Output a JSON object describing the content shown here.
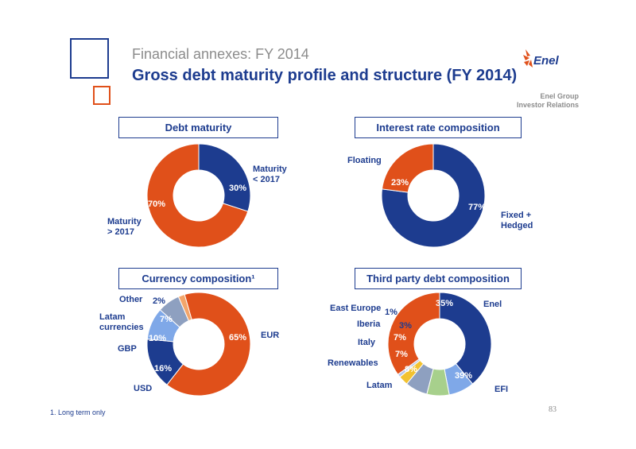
{
  "header": {
    "supertitle": "Financial annexes: FY 2014",
    "title": "Gross debt maturity profile and structure (FY 2014)",
    "logo_text": "Enel",
    "group_line1": "Enel Group",
    "group_line2": "Investor Relations"
  },
  "colors": {
    "blue": "#1d3c8f",
    "orange": "#e0501a",
    "text_orange": "#e0501a",
    "grey": "#8c8c8c",
    "mid_blue": "#5b8de0",
    "light_blue": "#7fa8e8",
    "slate": "#8ea0c0",
    "yellow": "#f2c230",
    "light_green": "#a7d08c",
    "lavender": "#b7c7ea",
    "peach": "#f3a56a"
  },
  "chart_data": [
    {
      "type": "pie",
      "title": "Debt maturity",
      "slices": [
        {
          "label": "Maturity\n< 2017",
          "value": 30,
          "value_label": "30%",
          "color": "#1d3c8f"
        },
        {
          "label": "Maturity\n> 2017",
          "value": 70,
          "value_label": "70%",
          "color": "#e0501a"
        }
      ]
    },
    {
      "type": "pie",
      "title": "Interest rate composition",
      "slices": [
        {
          "label": "Fixed  +\nHedged",
          "value": 77,
          "value_label": "77%",
          "color": "#1d3c8f"
        },
        {
          "label": "Floating",
          "value": 23,
          "value_label": "23%",
          "color": "#e0501a"
        }
      ]
    },
    {
      "type": "pie",
      "title": "Currency composition¹",
      "slices": [
        {
          "label": "EUR",
          "value": 65,
          "value_label": "65%",
          "color": "#e0501a"
        },
        {
          "label": "USD",
          "value": 16,
          "value_label": "16%",
          "color": "#1d3c8f"
        },
        {
          "label": "GBP",
          "value": 10,
          "value_label": "10%",
          "color": "#7fa8e8"
        },
        {
          "label": "Latam\ncurrencies",
          "value": 7,
          "value_label": "7%",
          "color": "#8ea0c0"
        },
        {
          "label": "Other",
          "value": 2,
          "value_label": "2%",
          "color": "#f3a56a"
        }
      ]
    },
    {
      "type": "pie",
      "title": "Third party debt composition",
      "slices": [
        {
          "label": "EFI",
          "value": 39,
          "value_label": "39%",
          "color": "#1d3c8f"
        },
        {
          "label": "Latam",
          "value": 8,
          "value_label": "8%",
          "color": "#7fa8e8"
        },
        {
          "label": "Renewables",
          "value": 7,
          "value_label": "7%",
          "color": "#a7d08c"
        },
        {
          "label": "Italy",
          "value": 7,
          "value_label": "7%",
          "color": "#8ea0c0"
        },
        {
          "label": "Iberia",
          "value": 3,
          "value_label": "3%",
          "color": "#f2c230"
        },
        {
          "label": "East Europe",
          "value": 1,
          "value_label": "1%",
          "color": "#b7c7ea"
        },
        {
          "label": "Enel",
          "value": 35,
          "value_label": "35%",
          "color": "#e0501a"
        }
      ]
    }
  ],
  "footnote": "1.   Long term only",
  "page_number": "83"
}
